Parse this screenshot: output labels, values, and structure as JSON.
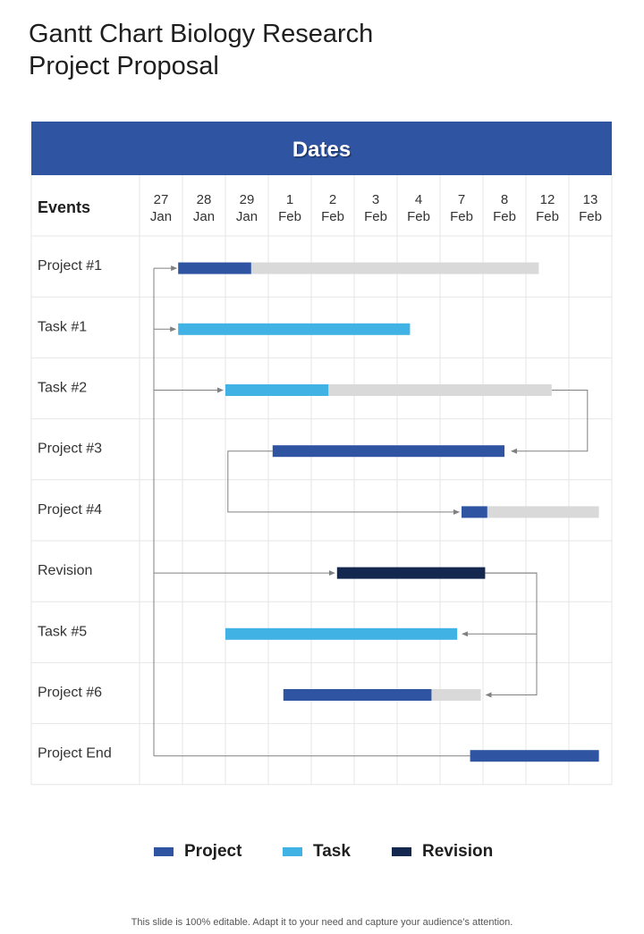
{
  "page": {
    "title_line1": "Gantt Chart Biology Research",
    "title_line2": "Project Proposal",
    "footer": "This slide is 100% editable. Adapt it to your need and capture your audience’s attention."
  },
  "colors": {
    "header": "#2f54a2",
    "project": "#2f54a2",
    "task": "#41b2e4",
    "revision": "#14284f",
    "remaining": "#d9d9d9",
    "grid": "#e6e6e6",
    "arrow": "#808080"
  },
  "chart_data": {
    "type": "gantt",
    "header": "Dates",
    "row_header": "Events",
    "columns": [
      {
        "day": "27",
        "month": "Jan"
      },
      {
        "day": "28",
        "month": "Jan"
      },
      {
        "day": "29",
        "month": "Jan"
      },
      {
        "day": "1",
        "month": "Feb"
      },
      {
        "day": "2",
        "month": "Feb"
      },
      {
        "day": "3",
        "month": "Feb"
      },
      {
        "day": "4",
        "month": "Feb"
      },
      {
        "day": "7",
        "month": "Feb"
      },
      {
        "day": "8",
        "month": "Feb"
      },
      {
        "day": "12",
        "month": "Feb"
      },
      {
        "day": "13",
        "month": "Feb"
      }
    ],
    "rows": [
      {
        "label": "Project #1",
        "category": "project",
        "start": 0.9,
        "progress_end": 2.6,
        "end": 9.3
      },
      {
        "label": "Task #1",
        "category": "task",
        "start": 0.9,
        "progress_end": 6.3,
        "end": 6.3
      },
      {
        "label": "Task #2",
        "category": "task",
        "start": 2.0,
        "progress_end": 4.4,
        "end": 9.6
      },
      {
        "label": "Project #3",
        "category": "project",
        "start": 3.1,
        "progress_end": 8.5,
        "end": 8.5
      },
      {
        "label": "Project #4",
        "category": "project",
        "start": 7.5,
        "progress_end": 8.1,
        "end": 10.7
      },
      {
        "label": "Revision",
        "category": "revision",
        "start": 4.6,
        "progress_end": 8.05,
        "end": 8.05
      },
      {
        "label": "Task #5",
        "category": "task",
        "start": 2.0,
        "progress_end": 7.4,
        "end": 7.4
      },
      {
        "label": "Project #6",
        "category": "project",
        "start": 3.35,
        "progress_end": 6.8,
        "end": 7.95
      },
      {
        "label": "Project End",
        "category": "project",
        "start": 7.7,
        "progress_end": 10.7,
        "end": 10.7
      }
    ],
    "dependencies": [
      {
        "from": 0,
        "to": 1
      },
      {
        "from": 0,
        "to": 2
      },
      {
        "from": 0,
        "to": 5
      },
      {
        "from": 0,
        "to": 8
      },
      {
        "from": 2,
        "to": 3
      },
      {
        "from": 3,
        "to": 4
      },
      {
        "from": 5,
        "to": 6
      },
      {
        "from": 5,
        "to": 7
      }
    ],
    "legend": [
      {
        "key": "project",
        "label": "Project"
      },
      {
        "key": "task",
        "label": "Task"
      },
      {
        "key": "revision",
        "label": "Revision"
      }
    ]
  }
}
